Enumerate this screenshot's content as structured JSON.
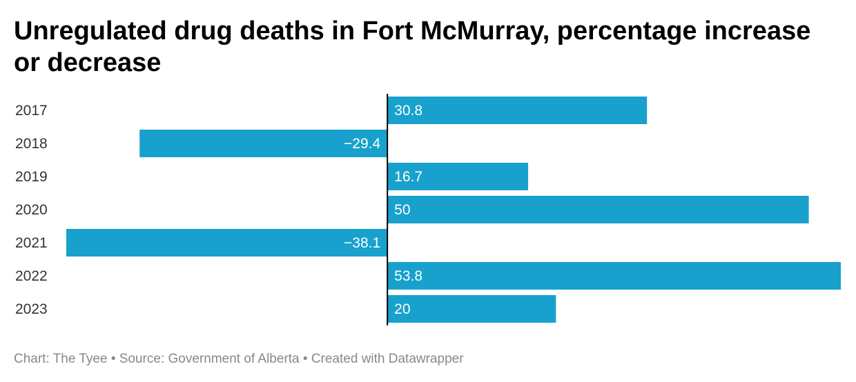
{
  "title": "Unregulated drug deaths in Fort McMurray, percentage increase or decrease",
  "footer": "Chart: The Tyee • Source: Government of Alberta • Created with Datawrapper",
  "colors": {
    "bar": "#18a1cd",
    "axis": "#000000",
    "label_on_bar": "#ffffff",
    "category": "#333333"
  },
  "chart_data": {
    "type": "bar",
    "orientation": "horizontal",
    "categories": [
      "2017",
      "2018",
      "2019",
      "2020",
      "2021",
      "2022",
      "2023"
    ],
    "values": [
      30.8,
      -29.4,
      16.7,
      50,
      -38.1,
      53.8,
      20
    ],
    "value_labels": [
      "30.8",
      "−29.4",
      "16.7",
      "50",
      "−38.1",
      "53.8",
      "20"
    ],
    "xlim": [
      -38.1,
      53.8
    ],
    "grid": false
  }
}
